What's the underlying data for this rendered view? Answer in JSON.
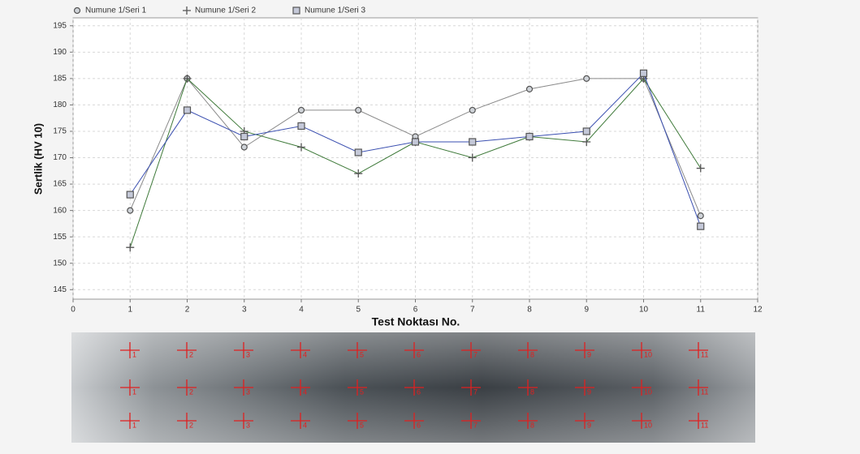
{
  "chart_data": {
    "type": "line",
    "x_label": "Test Noktası No.",
    "y_label": "Sertlik (HV 10)",
    "x": [
      1,
      2,
      3,
      4,
      5,
      6,
      7,
      8,
      9,
      10,
      11
    ],
    "series": [
      {
        "name": "Numune 1/Seri 1",
        "color": "#8a8a8a",
        "marker": "circle",
        "values": [
          160,
          185,
          172,
          179,
          179,
          174,
          179,
          183,
          185,
          185,
          159
        ]
      },
      {
        "name": "Numune 1/Seri 2",
        "color": "#3f7a3a",
        "marker": "plus",
        "values": [
          153,
          185,
          175,
          172,
          167,
          173,
          170,
          174,
          173,
          185,
          168
        ]
      },
      {
        "name": "Numune 1/Seri 3",
        "color": "#3a4fb0",
        "marker": "square",
        "values": [
          163,
          179,
          174,
          176,
          171,
          173,
          173,
          174,
          175,
          186,
          157
        ]
      }
    ],
    "xlim": [
      0,
      12
    ],
    "xticks": [
      0,
      1,
      2,
      3,
      4,
      5,
      6,
      7,
      8,
      9,
      10,
      11,
      12
    ],
    "ylim": [
      143.2,
      196.5
    ],
    "yticks": [
      145,
      150,
      155,
      160,
      165,
      170,
      175,
      180,
      185,
      190,
      195
    ],
    "grid": true,
    "legend": "top-left"
  },
  "specimen": {
    "labels": [
      "1",
      "2",
      "3",
      "4",
      "5",
      "6",
      "7",
      "8",
      "9",
      "10",
      "11"
    ]
  }
}
